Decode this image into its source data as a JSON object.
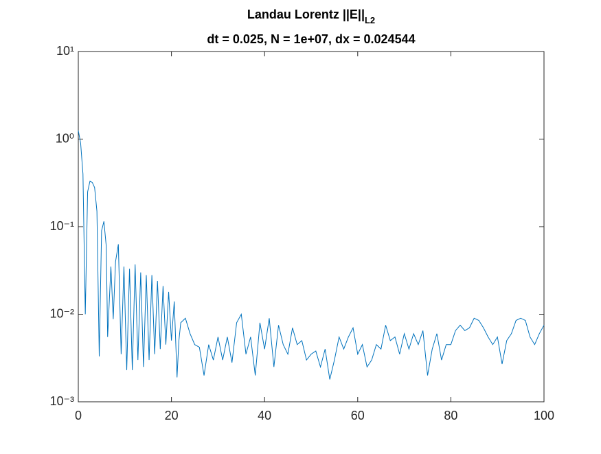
{
  "chart_data": {
    "type": "line",
    "title": "Landau Lorentz ||E||",
    "title_subscript": "L2",
    "subtitle": "dt = 0.025, N = 1e+07, dx = 0.024544",
    "log_y": true,
    "xlim": [
      0,
      100
    ],
    "xticks": [
      0,
      20,
      40,
      60,
      80,
      100
    ],
    "ylim": [
      0.001,
      10
    ],
    "yticks": [
      {
        "value": 0.001,
        "label": "10⁻³"
      },
      {
        "value": 0.01,
        "label": "10⁻²"
      },
      {
        "value": 0.1,
        "label": "10⁻¹"
      },
      {
        "value": 1,
        "label": "10⁰"
      },
      {
        "value": 10,
        "label": "10¹"
      }
    ],
    "x": [
      0,
      0.5,
      1,
      1.5,
      2,
      2.5,
      3,
      3.5,
      4,
      4.5,
      5,
      5.5,
      6,
      6.3,
      7,
      7.5,
      8,
      8.6,
      9.2,
      9.8,
      10.4,
      11,
      11.6,
      12.2,
      12.8,
      13.4,
      14,
      14.6,
      15.2,
      15.8,
      16.4,
      17,
      17.6,
      18.2,
      18.8,
      19.4,
      20,
      20.6,
      21.2,
      21.6,
      22,
      23,
      24,
      25,
      26,
      27,
      28,
      29,
      30,
      31,
      32,
      33,
      34,
      35,
      36,
      37,
      38,
      39,
      40,
      41,
      42,
      43,
      44,
      45,
      46,
      47,
      48,
      49,
      50,
      51,
      52,
      53,
      54,
      55,
      56,
      57,
      58,
      59,
      60,
      61,
      62,
      63,
      64,
      65,
      66,
      67,
      68,
      69,
      70,
      71,
      72,
      73,
      74,
      75,
      76,
      77,
      78,
      79,
      80,
      81,
      82,
      83,
      84,
      85,
      86,
      87,
      88,
      89,
      90,
      91,
      92,
      93,
      94,
      95,
      96,
      97,
      98,
      99,
      100
    ],
    "series": [
      {
        "color": "#0072BD",
        "values": [
          1.25,
          0.9,
          0.4,
          0.01,
          0.25,
          0.33,
          0.32,
          0.28,
          0.15,
          0.0033,
          0.09,
          0.115,
          0.06,
          0.0055,
          0.035,
          0.0088,
          0.04,
          0.063,
          0.0035,
          0.035,
          0.0023,
          0.033,
          0.0023,
          0.037,
          0.003,
          0.03,
          0.0025,
          0.028,
          0.003,
          0.028,
          0.0035,
          0.024,
          0.004,
          0.021,
          0.0045,
          0.018,
          0.005,
          0.014,
          0.0019,
          0.005,
          0.008,
          0.009,
          0.006,
          0.0045,
          0.0042,
          0.002,
          0.0045,
          0.003,
          0.0055,
          0.003,
          0.0055,
          0.0028,
          0.008,
          0.01,
          0.0035,
          0.0055,
          0.002,
          0.008,
          0.004,
          0.009,
          0.0025,
          0.0075,
          0.0045,
          0.0035,
          0.007,
          0.0045,
          0.005,
          0.003,
          0.0035,
          0.0038,
          0.0025,
          0.004,
          0.0018,
          0.003,
          0.0055,
          0.004,
          0.0055,
          0.007,
          0.0035,
          0.0045,
          0.0025,
          0.003,
          0.0045,
          0.004,
          0.0075,
          0.005,
          0.0055,
          0.0035,
          0.006,
          0.004,
          0.006,
          0.0045,
          0.0065,
          0.002,
          0.004,
          0.006,
          0.003,
          0.0045,
          0.0045,
          0.0065,
          0.0075,
          0.0065,
          0.007,
          0.009,
          0.0085,
          0.007,
          0.0055,
          0.0045,
          0.0055,
          0.0027,
          0.005,
          0.006,
          0.0085,
          0.009,
          0.0085,
          0.0055,
          0.0045,
          0.006,
          0.0075
        ]
      }
    ]
  }
}
